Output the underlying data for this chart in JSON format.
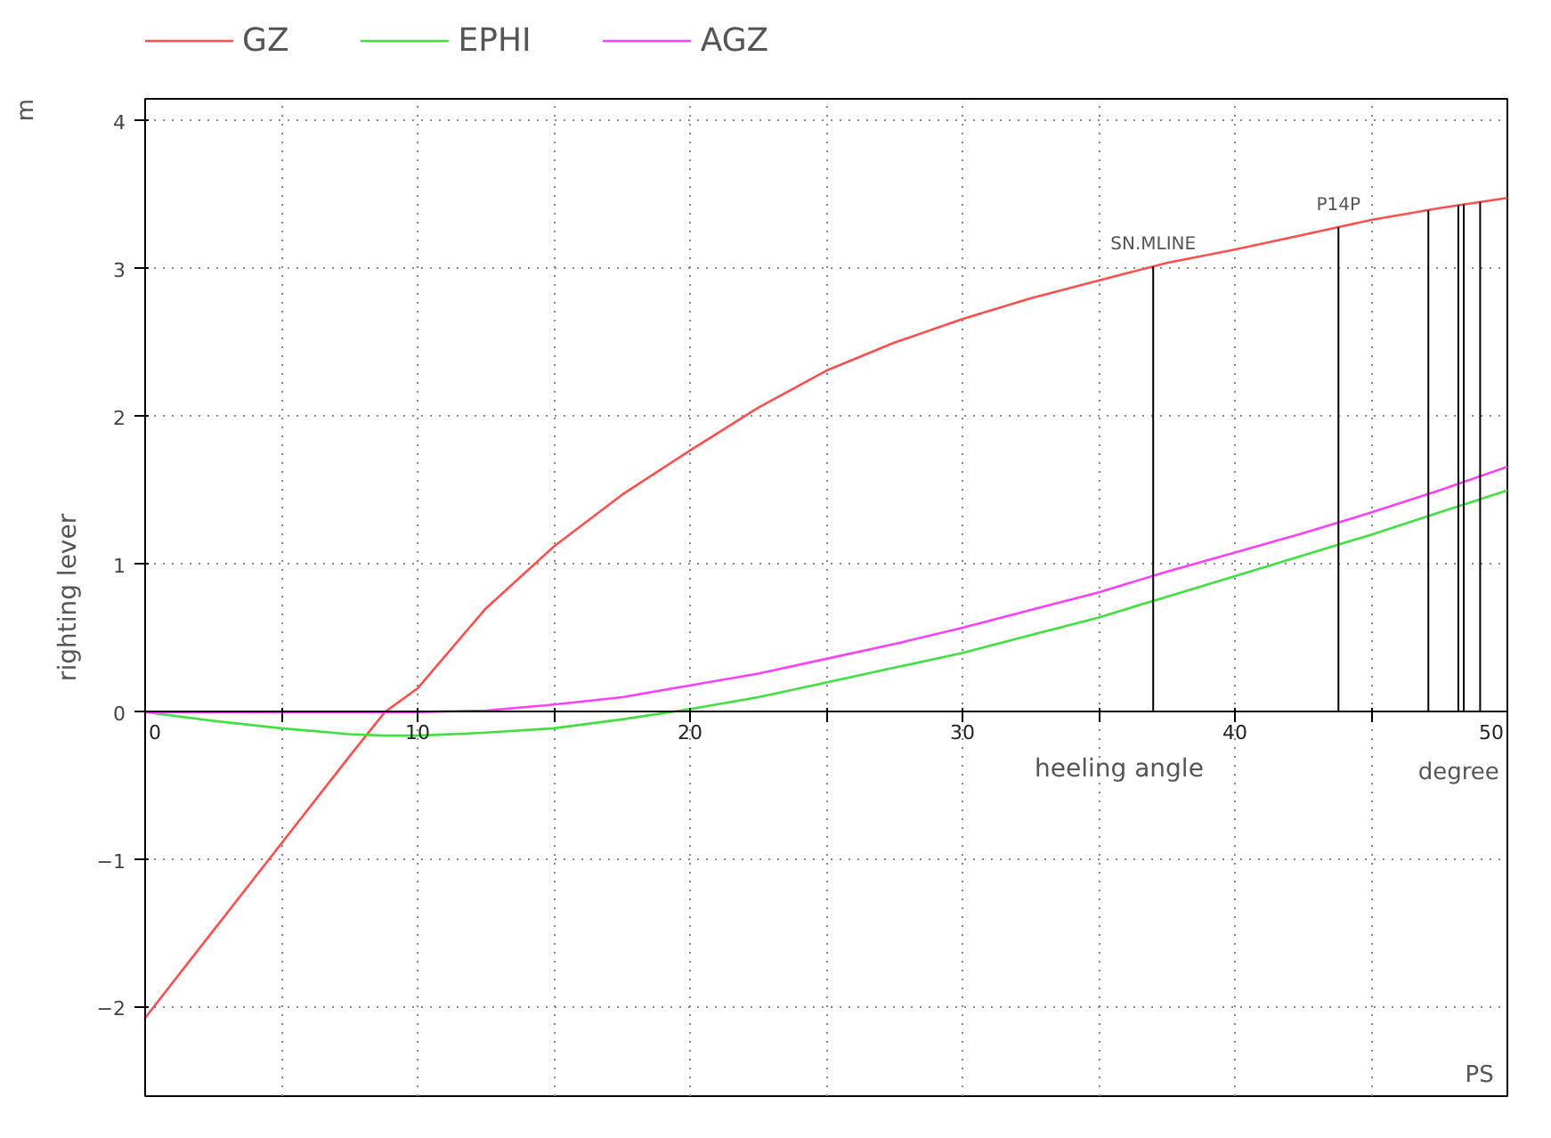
{
  "chart_data": {
    "type": "line",
    "xlabel": "heeling angle",
    "ylabel": "righting lever",
    "xlim": [
      0,
      50
    ],
    "ylim": [
      -2.6,
      4.15
    ],
    "xticks": [
      0,
      {
        "value": 5,
        "label": null
      },
      10,
      {
        "value": 15,
        "label": null
      },
      20,
      {
        "value": 25,
        "label": null
      },
      30,
      {
        "value": 35,
        "label": null
      },
      40,
      {
        "value": 45,
        "label": null
      },
      50
    ],
    "yticks": [
      -2,
      -1,
      0,
      1,
      2,
      3,
      4
    ],
    "x": [
      0,
      2.5,
      5,
      7.5,
      8.8,
      10,
      12.5,
      15,
      17.5,
      20,
      22.5,
      25,
      27.5,
      30,
      32.5,
      35,
      37.5,
      40,
      42.5,
      45,
      47.5,
      50
    ],
    "series": [
      {
        "name": "GZ",
        "color": "#ff5050",
        "values": [
          -2.07,
          -1.48,
          -0.89,
          -0.3,
          0,
          0.16,
          0.7,
          1.12,
          1.47,
          1.77,
          2.06,
          2.31,
          2.5,
          2.66,
          2.8,
          2.92,
          3.04,
          3.13,
          3.23,
          3.33,
          3.41,
          3.48
        ]
      },
      {
        "name": "EPHI",
        "color": "#40e040",
        "values": [
          0,
          -0.06,
          -0.11,
          -0.15,
          -0.16,
          -0.16,
          -0.14,
          -0.11,
          -0.05,
          0.02,
          0.1,
          0.2,
          0.3,
          0.4,
          0.52,
          0.64,
          0.78,
          0.92,
          1.06,
          1.2,
          1.35,
          1.5
        ]
      },
      {
        "name": "AGZ",
        "color": "#ff40ff",
        "values": [
          0,
          0,
          0,
          0,
          0,
          0,
          0.01,
          0.05,
          0.1,
          0.18,
          0.26,
          0.36,
          0.46,
          0.57,
          0.69,
          0.81,
          0.95,
          1.08,
          1.21,
          1.35,
          1.5,
          1.66
        ]
      }
    ],
    "ref_lines": [
      {
        "axis": "x",
        "value": 37,
        "label": "SN.MLINE",
        "color": "#000000"
      },
      {
        "axis": "x",
        "value": 43.8,
        "label": "P14P",
        "color": "#000000"
      },
      {
        "axis": "x",
        "value": 47.1,
        "label": null,
        "color": "#000000"
      },
      {
        "axis": "x",
        "value": 48.2,
        "label": null,
        "color": "#000000"
      },
      {
        "axis": "x",
        "value": 48.4,
        "label": null,
        "color": "#000000"
      },
      {
        "axis": "x",
        "value": 49,
        "label": null,
        "color": "#000000"
      }
    ],
    "annotations": [
      "m",
      "degree",
      "PS"
    ],
    "grid": true,
    "legend": "top left",
    "line_style": "solid"
  }
}
